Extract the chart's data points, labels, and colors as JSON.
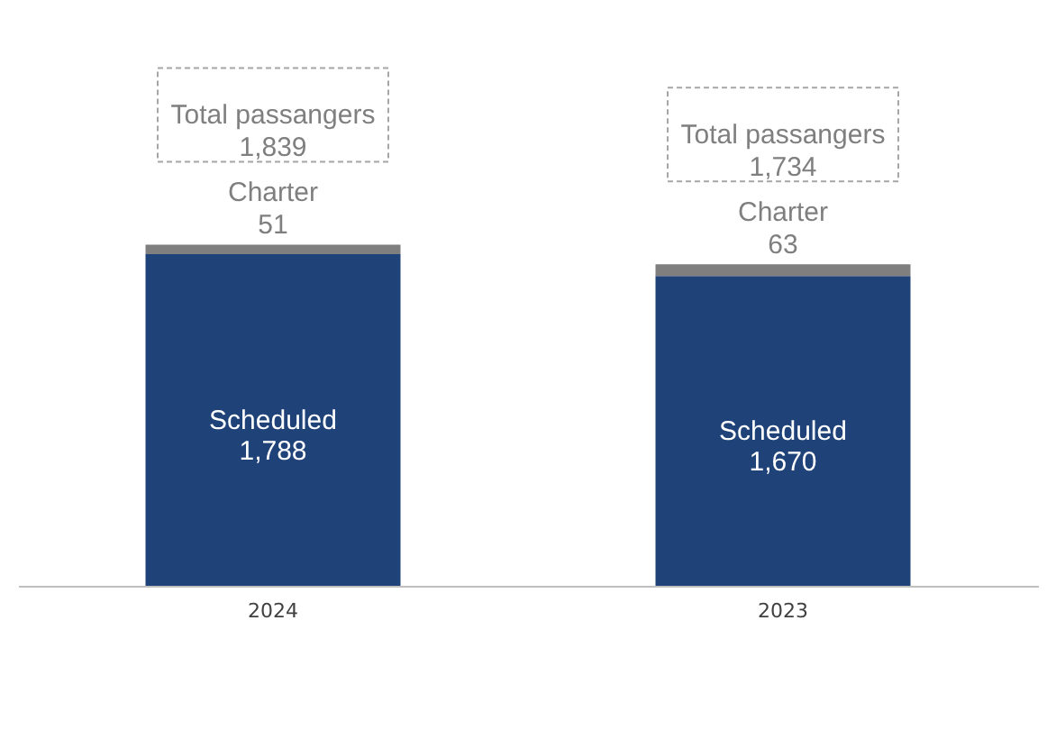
{
  "chart_data": {
    "type": "bar",
    "stacked": true,
    "categories": [
      "2024",
      "2023"
    ],
    "series": [
      {
        "name": "Scheduled",
        "color": "#1f4278",
        "values": [
          1788,
          1670
        ],
        "value_labels": [
          "1,788",
          "1,670"
        ]
      },
      {
        "name": "Charter",
        "color": "#7f7f7f",
        "values": [
          51,
          63
        ],
        "value_labels": [
          "51",
          "63"
        ]
      }
    ],
    "totals": [
      "Total passangers 1,839",
      "Total passangers 1,734"
    ]
  }
}
